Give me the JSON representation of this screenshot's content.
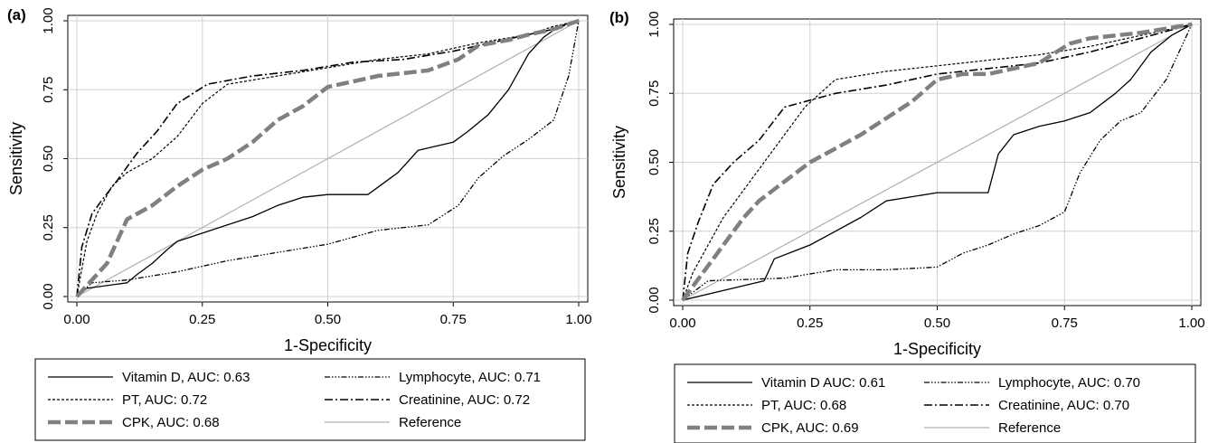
{
  "panels": [
    {
      "panel_label": "(a)",
      "legend": [
        {
          "label": "Vitamin D,  AUC: 0.63",
          "color": "#000000"
        },
        {
          "label": "Lymphocyte, AUC: 0.71",
          "color": "#000000"
        },
        {
          "label": "PT, AUC: 0.72",
          "color": "#000000"
        },
        {
          "label": "Creatinine, AUC: 0.72",
          "color": "#000000"
        },
        {
          "label": "CPK, AUC: 0.68",
          "color": "#808080"
        },
        {
          "label": "Reference",
          "color": "#b0b0b0"
        }
      ]
    },
    {
      "panel_label": "(b)",
      "legend": [
        {
          "label": "Vitamin D AUC: 0.61",
          "color": "#000000"
        },
        {
          "label": "Lymphocyte,  AUC: 0.70",
          "color": "#000000"
        },
        {
          "label": "PT,  AUC: 0.68",
          "color": "#000000"
        },
        {
          "label": "Creatinine, AUC: 0.70",
          "color": "#000000"
        },
        {
          "label": "CPK, AUC: 0.69",
          "color": "#808080"
        },
        {
          "label": "Reference",
          "color": "#b0b0b0"
        }
      ]
    }
  ],
  "chart_data": [
    {
      "type": "line",
      "title": "",
      "xlabel": "1-Specificity",
      "ylabel": "Sensitivity",
      "xlim": [
        0,
        1
      ],
      "ylim": [
        0,
        1
      ],
      "xticks": [
        "0.00",
        "0.25",
        "0.50",
        "0.75",
        "1.00"
      ],
      "yticks": [
        "0.00",
        "0.25",
        "0.50",
        "0.75",
        "1.00"
      ],
      "grid": true,
      "legend_position": "bottom",
      "series": [
        {
          "name": "Vitamin D,  AUC: 0.63",
          "x": [
            0,
            0.02,
            0.1,
            0.12,
            0.15,
            0.18,
            0.2,
            0.25,
            0.3,
            0.35,
            0.4,
            0.45,
            0.5,
            0.58,
            0.64,
            0.68,
            0.75,
            0.78,
            0.82,
            0.86,
            0.9,
            0.93,
            0.96,
            1.0
          ],
          "y": [
            0,
            0.03,
            0.05,
            0.08,
            0.12,
            0.17,
            0.2,
            0.23,
            0.26,
            0.29,
            0.33,
            0.36,
            0.37,
            0.37,
            0.45,
            0.53,
            0.56,
            0.6,
            0.66,
            0.75,
            0.88,
            0.94,
            0.98,
            1.0
          ]
        },
        {
          "name": "Lymphocyte, AUC: 0.71",
          "x": [
            0,
            0.03,
            0.1,
            0.2,
            0.3,
            0.4,
            0.5,
            0.6,
            0.7,
            0.76,
            0.8,
            0.85,
            0.9,
            0.95,
            0.98,
            1.0
          ],
          "y": [
            0,
            0.05,
            0.06,
            0.09,
            0.13,
            0.16,
            0.19,
            0.24,
            0.26,
            0.33,
            0.43,
            0.51,
            0.57,
            0.64,
            0.8,
            1.0
          ]
        },
        {
          "name": "PT, AUC: 0.72",
          "x": [
            0,
            0.02,
            0.04,
            0.07,
            0.1,
            0.15,
            0.2,
            0.25,
            0.3,
            0.4,
            0.5,
            0.6,
            0.7,
            0.8,
            0.9,
            0.95,
            1.0
          ],
          "y": [
            0,
            0.2,
            0.3,
            0.4,
            0.45,
            0.5,
            0.58,
            0.7,
            0.77,
            0.8,
            0.83,
            0.86,
            0.88,
            0.92,
            0.95,
            0.98,
            1.0
          ]
        },
        {
          "name": "Creatinine, AUC: 0.72",
          "x": [
            0,
            0.01,
            0.03,
            0.05,
            0.08,
            0.12,
            0.16,
            0.2,
            0.26,
            0.35,
            0.45,
            0.55,
            0.65,
            0.75,
            0.85,
            0.95,
            1.0
          ],
          "y": [
            0,
            0.18,
            0.3,
            0.35,
            0.42,
            0.52,
            0.6,
            0.7,
            0.77,
            0.8,
            0.82,
            0.85,
            0.86,
            0.89,
            0.93,
            0.97,
            1.0
          ]
        },
        {
          "name": "CPK, AUC: 0.68",
          "x": [
            0,
            0.03,
            0.06,
            0.08,
            0.1,
            0.12,
            0.15,
            0.2,
            0.25,
            0.3,
            0.35,
            0.4,
            0.45,
            0.5,
            0.55,
            0.6,
            0.7,
            0.76,
            0.8,
            0.86,
            0.9,
            0.95,
            1.0
          ],
          "y": [
            0,
            0.06,
            0.12,
            0.2,
            0.28,
            0.3,
            0.33,
            0.4,
            0.46,
            0.5,
            0.56,
            0.64,
            0.69,
            0.76,
            0.78,
            0.8,
            0.82,
            0.86,
            0.91,
            0.93,
            0.95,
            0.97,
            1.0
          ]
        },
        {
          "name": "Reference",
          "x": [
            0,
            1
          ],
          "y": [
            0,
            1
          ]
        }
      ]
    },
    {
      "type": "line",
      "title": "",
      "xlabel": "1-Specificity",
      "ylabel": "Sensitivity",
      "xlim": [
        0,
        1
      ],
      "ylim": [
        0,
        1
      ],
      "xticks": [
        "0.00",
        "0.25",
        "0.50",
        "0.75",
        "1.00"
      ],
      "yticks": [
        "0.00",
        "0.25",
        "0.50",
        "0.75",
        "1.00"
      ],
      "grid": true,
      "legend_position": "bottom",
      "series": [
        {
          "name": "Vitamin D AUC: 0.61",
          "x": [
            0,
            0.16,
            0.18,
            0.25,
            0.3,
            0.35,
            0.4,
            0.5,
            0.6,
            0.62,
            0.65,
            0.7,
            0.75,
            0.8,
            0.85,
            0.88,
            0.92,
            0.96,
            1.0
          ],
          "y": [
            0,
            0.07,
            0.15,
            0.2,
            0.25,
            0.3,
            0.36,
            0.39,
            0.39,
            0.53,
            0.6,
            0.63,
            0.65,
            0.68,
            0.75,
            0.8,
            0.9,
            0.96,
            1.0
          ]
        },
        {
          "name": "Lymphocyte,  AUC: 0.70",
          "x": [
            0,
            0.05,
            0.2,
            0.3,
            0.4,
            0.5,
            0.55,
            0.6,
            0.65,
            0.7,
            0.75,
            0.78,
            0.82,
            0.86,
            0.9,
            0.95,
            1.0
          ],
          "y": [
            0,
            0.07,
            0.08,
            0.11,
            0.11,
            0.12,
            0.17,
            0.2,
            0.24,
            0.27,
            0.32,
            0.46,
            0.58,
            0.65,
            0.68,
            0.8,
            1.0
          ]
        },
        {
          "name": "PT,  AUC: 0.68",
          "x": [
            0,
            0.02,
            0.05,
            0.08,
            0.12,
            0.16,
            0.2,
            0.24,
            0.3,
            0.4,
            0.5,
            0.6,
            0.7,
            0.8,
            0.9,
            1.0
          ],
          "y": [
            0,
            0.1,
            0.2,
            0.3,
            0.4,
            0.5,
            0.6,
            0.7,
            0.8,
            0.83,
            0.85,
            0.87,
            0.89,
            0.92,
            0.96,
            1.0
          ]
        },
        {
          "name": "Creatinine, AUC: 0.70",
          "x": [
            0,
            0.01,
            0.03,
            0.06,
            0.1,
            0.15,
            0.2,
            0.3,
            0.4,
            0.5,
            0.6,
            0.7,
            0.8,
            0.9,
            1.0
          ],
          "y": [
            0,
            0.17,
            0.28,
            0.42,
            0.5,
            0.58,
            0.7,
            0.75,
            0.78,
            0.82,
            0.84,
            0.86,
            0.9,
            0.95,
            1.0
          ]
        },
        {
          "name": "CPK, AUC: 0.69",
          "x": [
            0,
            0.04,
            0.06,
            0.08,
            0.1,
            0.12,
            0.15,
            0.2,
            0.25,
            0.3,
            0.35,
            0.4,
            0.45,
            0.5,
            0.55,
            0.6,
            0.7,
            0.76,
            0.8,
            0.9,
            1.0
          ],
          "y": [
            0,
            0.1,
            0.15,
            0.2,
            0.25,
            0.3,
            0.36,
            0.43,
            0.5,
            0.55,
            0.6,
            0.66,
            0.72,
            0.8,
            0.82,
            0.82,
            0.86,
            0.93,
            0.95,
            0.97,
            1.0
          ]
        },
        {
          "name": "Reference",
          "x": [
            0,
            1
          ],
          "y": [
            0,
            1
          ]
        }
      ]
    }
  ]
}
